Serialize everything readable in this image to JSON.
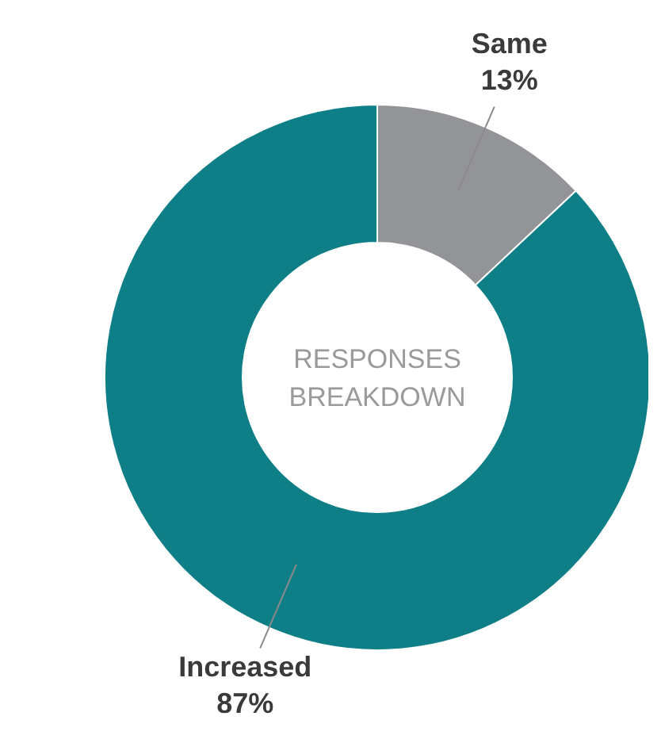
{
  "chart_data": {
    "type": "donut",
    "title": "RESPONSES BREAKDOWN",
    "categories": [
      "Same",
      "Increased"
    ],
    "values": [
      13,
      87
    ],
    "value_labels": [
      "13%",
      "87%"
    ],
    "colors": [
      "#929497",
      "#0e7f86"
    ]
  }
}
